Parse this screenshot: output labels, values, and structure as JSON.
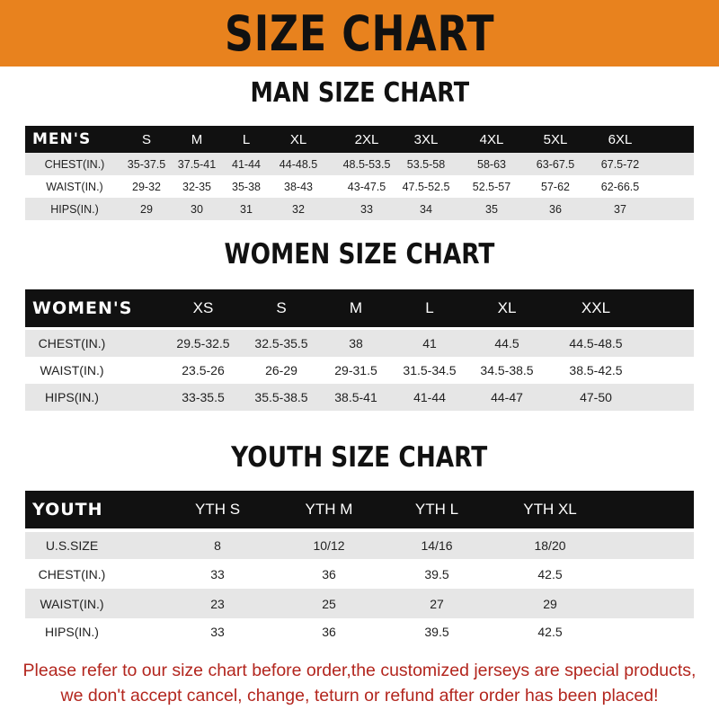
{
  "title": "SIZE CHART",
  "colors": {
    "banner": "#e8821e",
    "header_row": "#111111",
    "stripe": "#e6e6e6",
    "notice": "#b3261e"
  },
  "men": {
    "heading": "MAN SIZE CHART",
    "columns": [
      "MEN'S",
      "S",
      "M",
      "L",
      "XL",
      "2XL",
      "3XL",
      "4XL",
      "5XL",
      "6XL"
    ],
    "rows": [
      [
        "CHEST(IN.)",
        "35-37.5",
        "37.5-41",
        "41-44",
        "44-48.5",
        "48.5-53.5",
        "53.5-58",
        "58-63",
        "63-67.5",
        "67.5-72"
      ],
      [
        "WAIST(IN.)",
        "29-32",
        "32-35",
        "35-38",
        "38-43",
        "43-47.5",
        "47.5-52.5",
        "52.5-57",
        "57-62",
        "62-66.5"
      ],
      [
        "HIPS(IN.)",
        "29",
        "30",
        "31",
        "32",
        "33",
        "34",
        "35",
        "36",
        "37"
      ]
    ]
  },
  "women": {
    "heading": "WOMEN SIZE CHART",
    "columns": [
      "WOMEN'S",
      "XS",
      "S",
      "M",
      "L",
      "XL",
      "XXL"
    ],
    "rows": [
      [
        "CHEST(IN.)",
        "29.5-32.5",
        "32.5-35.5",
        "38",
        "41",
        "44.5",
        "44.5-48.5"
      ],
      [
        "WAIST(IN.)",
        "23.5-26",
        "26-29",
        "29-31.5",
        "31.5-34.5",
        "34.5-38.5",
        "38.5-42.5"
      ],
      [
        "HIPS(IN.)",
        "33-35.5",
        "35.5-38.5",
        "38.5-41",
        "41-44",
        "44-47",
        "47-50"
      ]
    ]
  },
  "youth": {
    "heading": "YOUTH SIZE CHART",
    "columns": [
      "YOUTH",
      "YTH S",
      "YTH M",
      "YTH L",
      "YTH XL"
    ],
    "rows": [
      [
        "U.S.SIZE",
        "8",
        "10/12",
        "14/16",
        "18/20"
      ],
      [
        "CHEST(IN.)",
        "33",
        "36",
        "39.5",
        "42.5"
      ],
      [
        "WAIST(IN.)",
        "23",
        "25",
        "27",
        "29"
      ],
      [
        "HIPS(IN.)",
        "33",
        "36",
        "39.5",
        "42.5"
      ]
    ]
  },
  "notice": {
    "line1": "Please refer to our size chart before order,the customized jerseys are special products,",
    "line2": "we don't accept cancel, change, teturn or refund after order has been placed!"
  }
}
